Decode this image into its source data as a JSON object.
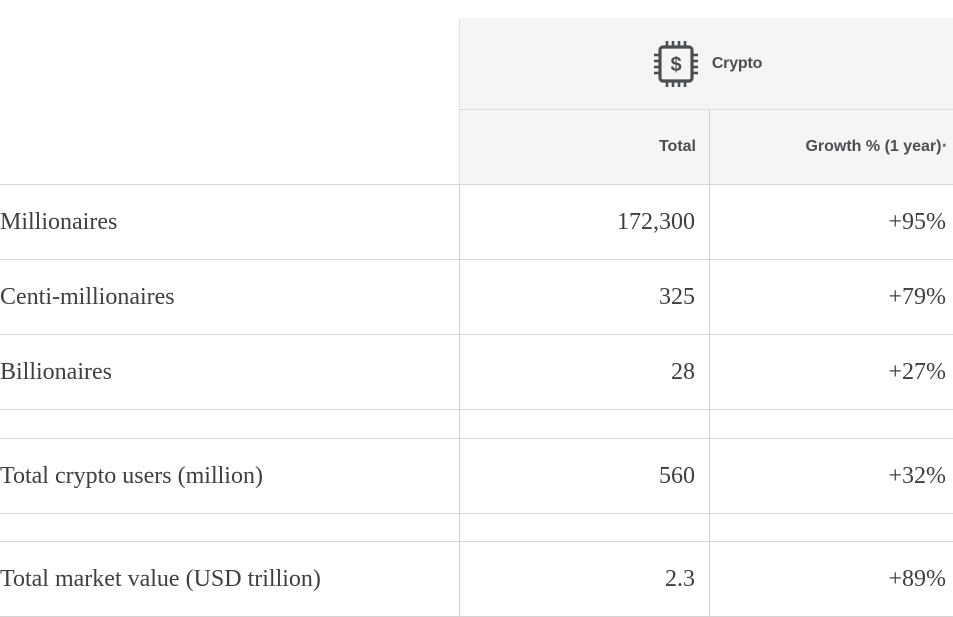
{
  "header": {
    "group_label": "Crypto",
    "group_icon": "chip-dollar-icon",
    "col_total": "Total",
    "col_growth": "Growth % (1 year)",
    "col_growth_marker": "*"
  },
  "rows": [
    {
      "label": "Millionaires",
      "total": "172,300",
      "growth": "+95%"
    },
    {
      "label": "Centi-millionaires",
      "total": "325",
      "growth": "+79%"
    },
    {
      "label": "Billionaires",
      "total": "28",
      "growth": "+27%"
    },
    {
      "label": "Total crypto users (million)",
      "total": "560",
      "growth": "+32%"
    },
    {
      "label": "Total market value (USD trillion)",
      "total": "2.3",
      "growth": "+89%"
    }
  ],
  "colors": {
    "header_bg": "#f5f5f5",
    "text": "#3c4043",
    "header_text": "#4a4f54",
    "border": "#d4d4d4"
  }
}
